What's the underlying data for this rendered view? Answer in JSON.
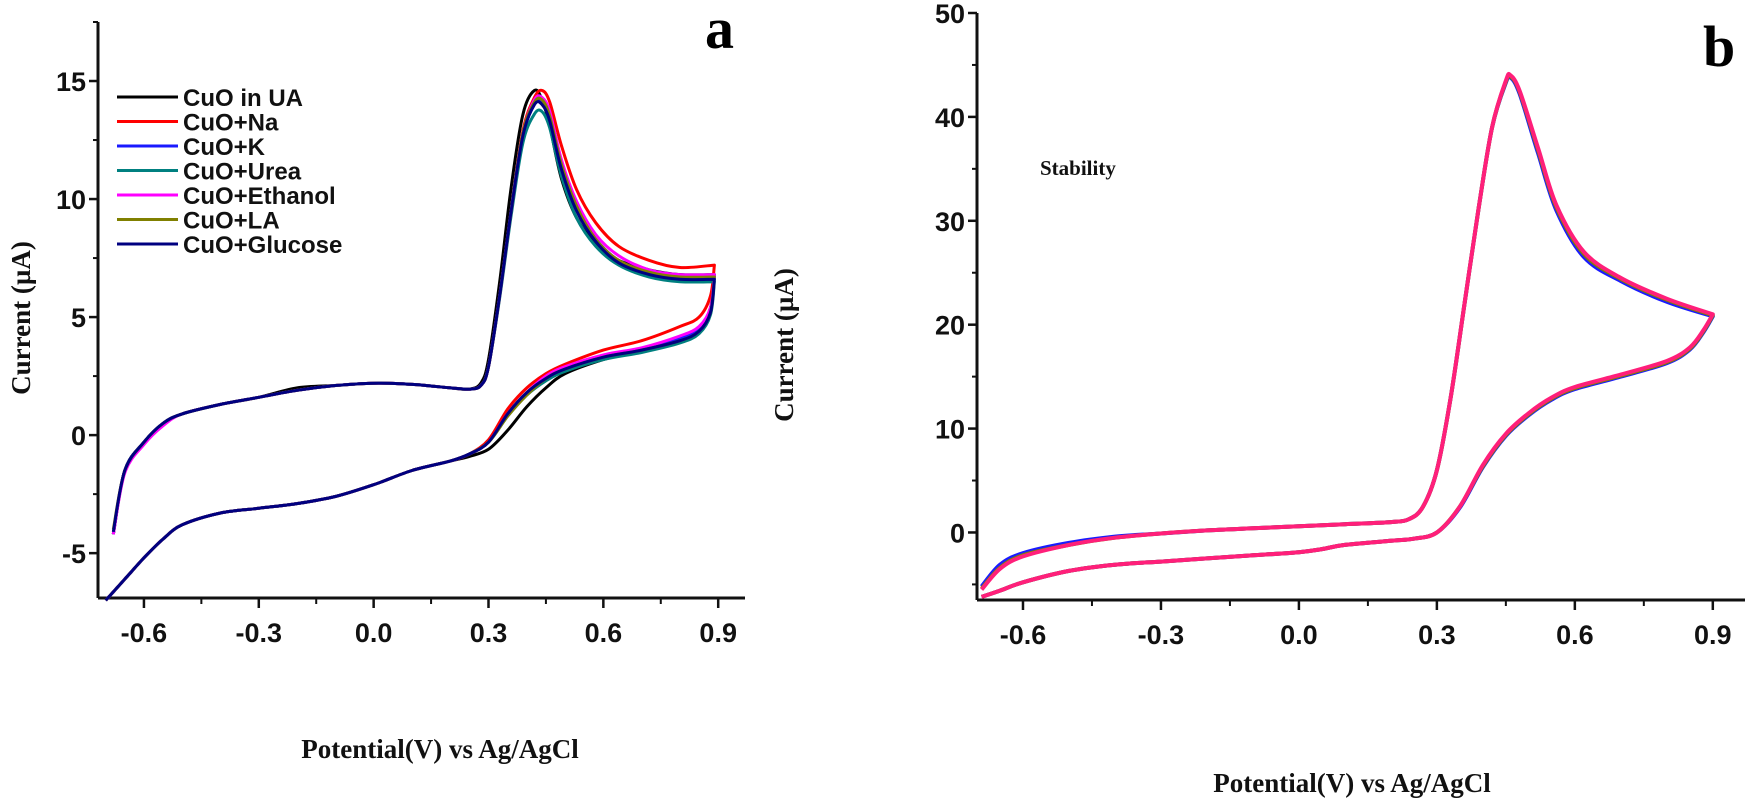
{
  "chart_data": [
    {
      "type": "line",
      "panel_label": "a",
      "xlabel": "Potential(V) vs Ag/AgCl",
      "ylabel": "Current (µA)",
      "xlim": [
        -0.72,
        0.97
      ],
      "ylim": [
        -6.9,
        17.5
      ],
      "xticks": [
        -0.6,
        -0.3,
        0.0,
        0.3,
        0.6,
        0.9
      ],
      "xtick_labels": [
        "-0.6",
        "-0.3",
        "0.0",
        "0.3",
        "0.6",
        "0.9"
      ],
      "yticks": [
        -5,
        0,
        5,
        10,
        15
      ],
      "ytick_labels": [
        "-5",
        "0",
        "5",
        "10",
        "15"
      ],
      "grid": false,
      "legend_position": "top-left",
      "E_forward": [
        -0.68,
        -0.65,
        -0.6,
        -0.55,
        -0.5,
        -0.4,
        -0.3,
        -0.2,
        -0.1,
        0,
        0.1,
        0.2,
        0.25,
        0.28,
        0.3,
        0.33,
        0.36,
        0.39,
        0.42,
        0.44,
        0.46,
        0.49,
        0.53,
        0.58,
        0.64,
        0.72,
        0.8,
        0.89
      ],
      "E_reverse": [
        0.89,
        0.88,
        0.85,
        0.8,
        0.7,
        0.6,
        0.5,
        0.45,
        0.4,
        0.35,
        0.3,
        0.25,
        0.2,
        0.1,
        0,
        -0.1,
        -0.2,
        -0.3,
        -0.4,
        -0.5,
        -0.55,
        -0.6,
        -0.65,
        -0.7
      ],
      "series": [
        {
          "name": "CuO in UA",
          "color": "#000000",
          "i_forward": [
            -4.2,
            -1.5,
            -0.3,
            0.5,
            0.9,
            1.3,
            1.6,
            2.0,
            2.1,
            2.2,
            2.15,
            2.0,
            1.95,
            2.2,
            3.2,
            6.6,
            10.6,
            13.6,
            14.6,
            14.2,
            13.1,
            10.9,
            9.2,
            8.1,
            7.4,
            7.0,
            6.8,
            6.8
          ],
          "i_reverse": [
            6.8,
            5.4,
            4.5,
            4.1,
            3.6,
            3.2,
            2.6,
            2.0,
            1.2,
            0.2,
            -0.6,
            -0.9,
            -1.1,
            -1.5,
            -2.1,
            -2.6,
            -2.9,
            -3.1,
            -3.3,
            -3.8,
            -4.4,
            -5.2,
            -6.1,
            -7.0
          ]
        },
        {
          "name": "CuO+Na",
          "color": "#ff0000",
          "i_forward": [
            -4.2,
            -1.5,
            -0.3,
            0.5,
            0.9,
            1.3,
            1.6,
            1.9,
            2.1,
            2.2,
            2.15,
            2.0,
            1.95,
            2.1,
            2.9,
            6.0,
            9.6,
            12.9,
            14.3,
            14.6,
            14.1,
            12.3,
            10.4,
            9.0,
            8.0,
            7.4,
            7.1,
            7.2
          ],
          "i_reverse": [
            7.2,
            5.9,
            5.0,
            4.6,
            4.0,
            3.6,
            3.0,
            2.6,
            2.0,
            1.1,
            -0.2,
            -0.8,
            -1.1,
            -1.5,
            -2.1,
            -2.6,
            -2.9,
            -3.1,
            -3.3,
            -3.8,
            -4.4,
            -5.2,
            -6.1,
            -7.0
          ]
        },
        {
          "name": "CuO+K",
          "color": "#1a1aff",
          "i_forward": [
            -4.2,
            -1.5,
            -0.3,
            0.5,
            0.9,
            1.3,
            1.6,
            1.9,
            2.1,
            2.2,
            2.15,
            2.0,
            1.95,
            2.1,
            2.9,
            6.0,
            9.6,
            12.7,
            14.0,
            14.1,
            13.4,
            11.4,
            9.6,
            8.3,
            7.4,
            6.9,
            6.7,
            6.7
          ],
          "i_reverse": [
            6.7,
            5.3,
            4.5,
            4.1,
            3.6,
            3.3,
            2.8,
            2.4,
            1.8,
            0.9,
            -0.3,
            -0.8,
            -1.1,
            -1.5,
            -2.1,
            -2.6,
            -2.9,
            -3.1,
            -3.3,
            -3.8,
            -4.4,
            -5.2,
            -6.1,
            -7.0
          ]
        },
        {
          "name": "CuO+Urea",
          "color": "#008080",
          "i_forward": [
            -4.2,
            -1.5,
            -0.3,
            0.5,
            0.9,
            1.3,
            1.6,
            1.9,
            2.1,
            2.2,
            2.15,
            2.0,
            1.95,
            2.1,
            2.9,
            5.9,
            9.4,
            12.4,
            13.6,
            13.7,
            13.0,
            11.0,
            9.2,
            8.0,
            7.2,
            6.7,
            6.5,
            6.5
          ],
          "i_reverse": [
            6.5,
            5.1,
            4.3,
            3.9,
            3.5,
            3.2,
            2.7,
            2.3,
            1.7,
            0.8,
            -0.3,
            -0.8,
            -1.1,
            -1.5,
            -2.1,
            -2.6,
            -2.9,
            -3.1,
            -3.3,
            -3.8,
            -4.4,
            -5.2,
            -6.1,
            -7.0
          ]
        },
        {
          "name": "CuO+Ethanol",
          "color": "#ff00ff",
          "i_forward": [
            -4.2,
            -1.6,
            -0.4,
            0.4,
            0.9,
            1.3,
            1.6,
            1.9,
            2.1,
            2.2,
            2.15,
            2.0,
            1.95,
            2.1,
            2.9,
            6.0,
            9.6,
            12.8,
            14.2,
            14.3,
            13.7,
            11.7,
            9.9,
            8.5,
            7.6,
            7.0,
            6.8,
            6.8
          ],
          "i_reverse": [
            6.8,
            5.4,
            4.6,
            4.2,
            3.7,
            3.4,
            2.9,
            2.5,
            1.8,
            0.9,
            -0.3,
            -0.8,
            -1.1,
            -1.5,
            -2.1,
            -2.6,
            -2.9,
            -3.1,
            -3.3,
            -3.8,
            -4.4,
            -5.2,
            -6.1,
            -7.0
          ]
        },
        {
          "name": "CuO+LA",
          "color": "#808000",
          "i_forward": [
            -4.0,
            -1.5,
            -0.3,
            0.5,
            0.9,
            1.3,
            1.6,
            1.9,
            2.1,
            2.2,
            2.15,
            2.0,
            1.95,
            2.1,
            2.9,
            6.0,
            9.6,
            12.8,
            14.1,
            14.2,
            13.5,
            11.5,
            9.7,
            8.3,
            7.4,
            6.9,
            6.7,
            6.7
          ],
          "i_reverse": [
            6.7,
            5.2,
            4.4,
            4.0,
            3.6,
            3.3,
            2.8,
            2.4,
            1.7,
            0.8,
            -0.3,
            -0.8,
            -1.1,
            -1.5,
            -2.1,
            -2.6,
            -2.9,
            -3.1,
            -3.3,
            -3.8,
            -4.4,
            -5.2,
            -6.1,
            -7.0
          ]
        },
        {
          "name": "CuO+Glucose",
          "color": "#000080",
          "i_forward": [
            -4.1,
            -1.5,
            -0.3,
            0.5,
            0.9,
            1.3,
            1.6,
            1.9,
            2.1,
            2.2,
            2.15,
            2.0,
            1.95,
            2.1,
            2.9,
            6.0,
            9.6,
            12.7,
            14.0,
            14.0,
            13.3,
            11.3,
            9.5,
            8.2,
            7.3,
            6.8,
            6.6,
            6.6
          ],
          "i_reverse": [
            6.6,
            5.2,
            4.4,
            4.0,
            3.6,
            3.3,
            2.8,
            2.4,
            1.8,
            0.9,
            -0.3,
            -0.8,
            -1.1,
            -1.5,
            -2.1,
            -2.6,
            -2.9,
            -3.1,
            -3.3,
            -3.8,
            -4.4,
            -5.2,
            -6.1,
            -7.0
          ]
        }
      ]
    },
    {
      "type": "line",
      "panel_label": "b",
      "annotation": "Stability",
      "xlabel": "Potential(V) vs Ag/AgCl",
      "ylabel": "Current (µA)",
      "xlim": [
        -0.7,
        0.97
      ],
      "ylim": [
        -6.5,
        50
      ],
      "xticks": [
        -0.6,
        -0.3,
        0.0,
        0.3,
        0.6,
        0.9
      ],
      "xtick_labels": [
        "-0.6",
        "-0.3",
        "0.0",
        "0.3",
        "0.6",
        "0.9"
      ],
      "yticks": [
        0,
        10,
        20,
        30,
        40,
        50
      ],
      "ytick_labels": [
        "0",
        "10",
        "20",
        "30",
        "40",
        "50"
      ],
      "grid": false,
      "E_forward": [
        -0.69,
        -0.65,
        -0.6,
        -0.5,
        -0.4,
        -0.3,
        -0.2,
        -0.1,
        0,
        0.1,
        0.2,
        0.24,
        0.27,
        0.3,
        0.33,
        0.36,
        0.39,
        0.42,
        0.45,
        0.46,
        0.48,
        0.52,
        0.56,
        0.62,
        0.7,
        0.8,
        0.9
      ],
      "E_reverse": [
        0.9,
        0.88,
        0.85,
        0.8,
        0.7,
        0.6,
        0.55,
        0.5,
        0.45,
        0.4,
        0.35,
        0.3,
        0.25,
        0.2,
        0.1,
        0.05,
        0,
        -0.1,
        -0.2,
        -0.3,
        -0.4,
        -0.5,
        -0.6,
        -0.65,
        -0.69
      ],
      "series": [
        {
          "color": "#1a1aff",
          "i_forward": [
            -5.2,
            -3.1,
            -2.0,
            -1.0,
            -0.4,
            -0.1,
            0.2,
            0.4,
            0.6,
            0.8,
            1.0,
            1.3,
            2.5,
            6,
            13,
            22,
            31,
            39,
            43.3,
            43.8,
            42.2,
            36.5,
            31,
            26.5,
            24.2,
            22.2,
            20.8
          ],
          "i_reverse": [
            20.8,
            19.3,
            17.6,
            16.3,
            15.0,
            13.8,
            12.8,
            11.3,
            9.3,
            6.3,
            2.4,
            0,
            -0.6,
            -0.8,
            -1.2,
            -1.6,
            -1.9,
            -2.2,
            -2.5,
            -2.8,
            -3.1,
            -3.7,
            -4.8,
            -5.6,
            -6.2
          ]
        },
        {
          "color": "#808000",
          "i_forward": [
            -5.4,
            -3.4,
            -2.2,
            -1.2,
            -0.5,
            -0.1,
            0.2,
            0.4,
            0.6,
            0.8,
            1.0,
            1.3,
            2.5,
            6,
            13,
            22,
            31,
            39,
            43.4,
            43.9,
            42.4,
            36.8,
            31.3,
            26.8,
            24.4,
            22.4,
            20.9
          ],
          "i_reverse": [
            20.9,
            19.4,
            17.7,
            16.4,
            15.1,
            13.9,
            12.9,
            11.4,
            9.4,
            6.4,
            2.5,
            0,
            -0.6,
            -0.8,
            -1.2,
            -1.6,
            -1.9,
            -2.2,
            -2.5,
            -2.8,
            -3.1,
            -3.7,
            -4.8,
            -5.6,
            -6.2
          ]
        },
        {
          "color": "#ff1f7a",
          "i_forward": [
            -5.5,
            -3.5,
            -2.3,
            -1.2,
            -0.5,
            -0.1,
            0.2,
            0.4,
            0.6,
            0.8,
            1.0,
            1.3,
            2.5,
            6,
            13,
            22,
            31,
            39,
            43.5,
            44,
            42.5,
            37,
            31.5,
            27,
            24.5,
            22.5,
            21
          ],
          "i_reverse": [
            21,
            19.5,
            17.8,
            16.5,
            15.2,
            14,
            13,
            11.5,
            9.5,
            6.5,
            2.5,
            0,
            -0.6,
            -0.8,
            -1.2,
            -1.6,
            -1.9,
            -2.2,
            -2.5,
            -2.8,
            -3.1,
            -3.7,
            -4.8,
            -5.6,
            -6.2
          ]
        }
      ]
    }
  ]
}
